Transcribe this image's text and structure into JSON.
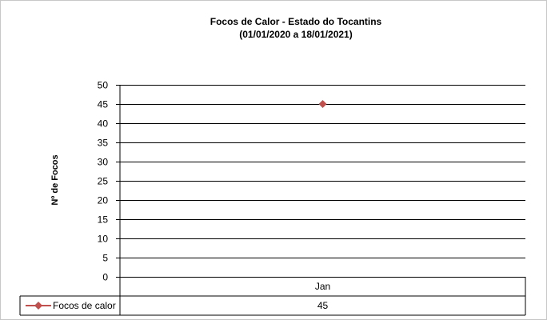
{
  "chart_data": {
    "type": "line",
    "title": "Focos de Calor - Estado do Tocantins",
    "subtitle": "(01/01/2020 a 18/01/2021)",
    "xlabel": "",
    "ylabel": "Nº de Focos",
    "categories": [
      "Jan"
    ],
    "series": [
      {
        "name": "Focos de calor",
        "values": [
          45
        ],
        "color": "#c0504d",
        "marker": "diamond"
      }
    ],
    "ylim": [
      0,
      50
    ],
    "yticks": [
      0,
      5,
      10,
      15,
      20,
      25,
      30,
      35,
      40,
      45,
      50
    ],
    "grid": true,
    "legend": "data-table-bottom",
    "data_table": true
  }
}
